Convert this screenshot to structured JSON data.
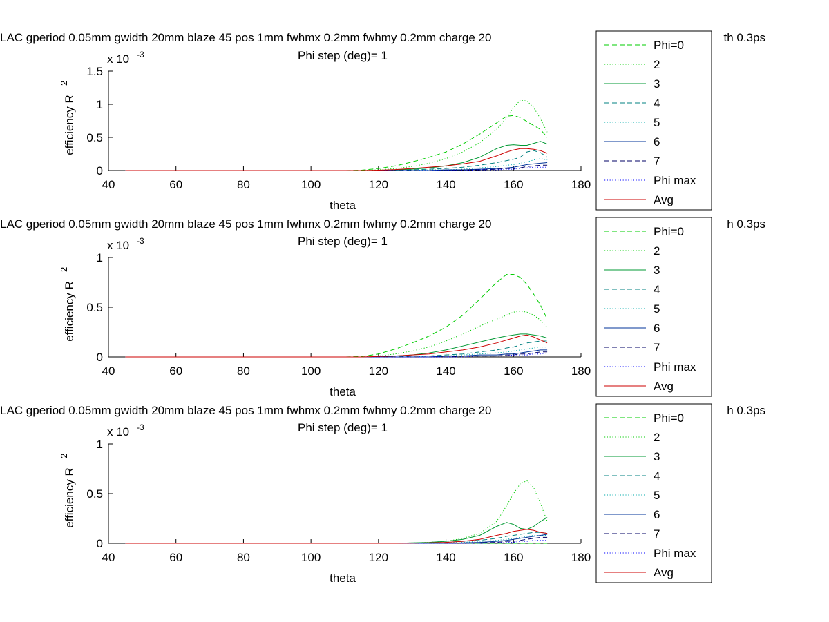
{
  "figure": {
    "background": "#ffffff",
    "axes_color": "#000000"
  },
  "chart_data": [
    {
      "type": "line",
      "title": "LAC gperiod 0.05mm gwidth 20mm blaze 45 pos 1mm fwhmx 0.2mm fwhmy 0.2mm charge 20",
      "title_tail": "th 0.3ps",
      "subtitle": "Phi step (deg)= 1",
      "xlabel": "theta",
      "ylabel": "efficiency R",
      "ylabel_sup": "2",
      "exponent_base": "x 10",
      "exponent_power": "-3",
      "xlim": [
        40,
        180
      ],
      "ylim": [
        0,
        1.5
      ],
      "xticks": [
        "40",
        "60",
        "80",
        "100",
        "120",
        "140",
        "160",
        "180"
      ],
      "yticks": [
        "0",
        "0.5",
        "1",
        "1.5"
      ],
      "ytick_values": [
        0,
        0.5,
        1,
        1.5
      ],
      "legend_position": "right",
      "x": [
        45,
        110,
        115,
        120,
        125,
        130,
        135,
        140,
        145,
        150,
        155,
        158,
        160,
        162,
        164,
        166,
        168,
        170
      ],
      "series": [
        {
          "name": "Phi=0",
          "color": "#00cc00",
          "style": "dashed",
          "values": [
            0,
            0,
            0.005,
            0.03,
            0.07,
            0.13,
            0.2,
            0.28,
            0.4,
            0.55,
            0.72,
            0.82,
            0.83,
            0.8,
            0.74,
            0.68,
            0.62,
            0.5
          ]
        },
        {
          "name": "2",
          "color": "#00cc00",
          "style": "dotted",
          "values": [
            0,
            0,
            0,
            0.01,
            0.03,
            0.06,
            0.11,
            0.18,
            0.28,
            0.42,
            0.62,
            0.8,
            0.95,
            1.06,
            1.05,
            0.95,
            0.78,
            0.58
          ]
        },
        {
          "name": "3",
          "color": "#009933",
          "style": "solid",
          "values": [
            0,
            0,
            0,
            0,
            0.01,
            0.02,
            0.04,
            0.07,
            0.12,
            0.2,
            0.33,
            0.38,
            0.39,
            0.38,
            0.38,
            0.41,
            0.44,
            0.4
          ]
        },
        {
          "name": "4",
          "color": "#008080",
          "style": "dashed",
          "values": [
            0,
            0,
            0,
            0,
            0,
            0.01,
            0.02,
            0.03,
            0.05,
            0.08,
            0.12,
            0.15,
            0.17,
            0.2,
            0.28,
            0.3,
            0.27,
            0.2
          ]
        },
        {
          "name": "5",
          "color": "#00aaaa",
          "style": "dotted",
          "values": [
            0,
            0,
            0,
            0,
            0,
            0,
            0.01,
            0.01,
            0.02,
            0.04,
            0.06,
            0.08,
            0.09,
            0.11,
            0.13,
            0.16,
            0.18,
            0.16
          ]
        },
        {
          "name": "6",
          "color": "#003399",
          "style": "solid",
          "values": [
            0,
            0,
            0,
            0,
            0,
            0,
            0,
            0.01,
            0.01,
            0.02,
            0.03,
            0.04,
            0.05,
            0.07,
            0.09,
            0.1,
            0.11,
            0.12
          ]
        },
        {
          "name": "7",
          "color": "#000066",
          "style": "dashed",
          "values": [
            0,
            0,
            0,
            0,
            0,
            0,
            0,
            0,
            0.01,
            0.01,
            0.02,
            0.03,
            0.03,
            0.04,
            0.06,
            0.07,
            0.08,
            0.08
          ]
        },
        {
          "name": "Phi max",
          "color": "#0000ff",
          "style": "dotted",
          "values": [
            0,
            0,
            0,
            0,
            0,
            0,
            0,
            0,
            0,
            0.01,
            0.01,
            0.02,
            0.02,
            0.03,
            0.04,
            0.05,
            0.05,
            0.05
          ]
        },
        {
          "name": "Avg",
          "color": "#cc0000",
          "style": "solid",
          "values": [
            0,
            0,
            0,
            0.005,
            0.015,
            0.03,
            0.05,
            0.07,
            0.1,
            0.14,
            0.22,
            0.28,
            0.31,
            0.33,
            0.33,
            0.32,
            0.3,
            0.26
          ]
        }
      ]
    },
    {
      "type": "line",
      "title": "LAC gperiod 0.05mm gwidth 20mm blaze 45 pos 1mm fwhmx 0.2mm fwhmy 0.2mm charge 20",
      "title_tail": "h 0.3ps",
      "subtitle": "Phi step (deg)= 1",
      "xlabel": "theta",
      "ylabel": "efficiency R",
      "ylabel_sup": "2",
      "exponent_base": "x 10",
      "exponent_power": "-3",
      "xlim": [
        40,
        180
      ],
      "ylim": [
        0,
        1
      ],
      "xticks": [
        "40",
        "60",
        "80",
        "100",
        "120",
        "140",
        "160",
        "180"
      ],
      "yticks": [
        "0",
        "0.5",
        "1"
      ],
      "ytick_values": [
        0,
        0.5,
        1
      ],
      "legend_position": "right",
      "x": [
        45,
        110,
        115,
        120,
        125,
        130,
        135,
        140,
        145,
        150,
        155,
        158,
        160,
        162,
        164,
        166,
        168,
        170
      ],
      "series": [
        {
          "name": "Phi=0",
          "color": "#00cc00",
          "style": "dashed",
          "values": [
            0,
            0,
            0.005,
            0.03,
            0.08,
            0.14,
            0.21,
            0.3,
            0.42,
            0.58,
            0.75,
            0.83,
            0.83,
            0.8,
            0.73,
            0.63,
            0.52,
            0.38
          ]
        },
        {
          "name": "2",
          "color": "#00cc00",
          "style": "dotted",
          "values": [
            0,
            0,
            0,
            0.01,
            0.03,
            0.06,
            0.1,
            0.16,
            0.23,
            0.31,
            0.38,
            0.42,
            0.45,
            0.46,
            0.45,
            0.42,
            0.37,
            0.3
          ]
        },
        {
          "name": "3",
          "color": "#009933",
          "style": "solid",
          "values": [
            0,
            0,
            0,
            0,
            0.01,
            0.02,
            0.04,
            0.07,
            0.11,
            0.15,
            0.19,
            0.21,
            0.22,
            0.23,
            0.23,
            0.22,
            0.21,
            0.19
          ]
        },
        {
          "name": "4",
          "color": "#008080",
          "style": "dashed",
          "values": [
            0,
            0,
            0,
            0,
            0,
            0.01,
            0.01,
            0.02,
            0.03,
            0.05,
            0.07,
            0.09,
            0.1,
            0.12,
            0.14,
            0.15,
            0.16,
            0.16
          ]
        },
        {
          "name": "5",
          "color": "#00aaaa",
          "style": "dotted",
          "values": [
            0,
            0,
            0,
            0,
            0,
            0,
            0.01,
            0.01,
            0.02,
            0.03,
            0.04,
            0.05,
            0.06,
            0.07,
            0.08,
            0.09,
            0.1,
            0.1
          ]
        },
        {
          "name": "6",
          "color": "#003399",
          "style": "solid",
          "values": [
            0,
            0,
            0,
            0,
            0,
            0,
            0,
            0.01,
            0.01,
            0.02,
            0.02,
            0.03,
            0.03,
            0.04,
            0.05,
            0.06,
            0.07,
            0.07
          ]
        },
        {
          "name": "7",
          "color": "#000066",
          "style": "dashed",
          "values": [
            0,
            0,
            0,
            0,
            0,
            0,
            0,
            0,
            0.01,
            0.01,
            0.01,
            0.02,
            0.02,
            0.03,
            0.03,
            0.04,
            0.05,
            0.05
          ]
        },
        {
          "name": "Phi max",
          "color": "#0000ff",
          "style": "dotted",
          "values": [
            0,
            0,
            0,
            0,
            0,
            0,
            0,
            0,
            0,
            0.01,
            0.01,
            0.01,
            0.02,
            0.02,
            0.02,
            0.03,
            0.03,
            0.04
          ]
        },
        {
          "name": "Avg",
          "color": "#cc0000",
          "style": "solid",
          "values": [
            0,
            0,
            0,
            0.005,
            0.01,
            0.02,
            0.03,
            0.05,
            0.07,
            0.1,
            0.14,
            0.17,
            0.19,
            0.21,
            0.22,
            0.2,
            0.17,
            0.14
          ]
        }
      ]
    },
    {
      "type": "line",
      "title": "LAC gperiod 0.05mm gwidth 20mm blaze 45 pos 1mm fwhmx 0.2mm fwhmy 0.2mm charge 20",
      "title_tail": "h 0.3ps",
      "subtitle": "Phi step (deg)= 1",
      "xlabel": "theta",
      "ylabel": "efficiency R",
      "ylabel_sup": "2",
      "exponent_base": "x 10",
      "exponent_power": "-3",
      "xlim": [
        40,
        180
      ],
      "ylim": [
        0,
        1
      ],
      "xticks": [
        "40",
        "60",
        "80",
        "100",
        "120",
        "140",
        "160",
        "180"
      ],
      "yticks": [
        "0",
        "0.5",
        "1"
      ],
      "ytick_values": [
        0,
        0.5,
        1
      ],
      "legend_position": "right",
      "x": [
        45,
        110,
        115,
        120,
        125,
        130,
        135,
        140,
        145,
        150,
        155,
        158,
        160,
        162,
        164,
        166,
        168,
        170
      ],
      "series": [
        {
          "name": "Phi=0",
          "color": "#00cc00",
          "style": "dashed",
          "values": [
            0,
            0,
            0,
            0,
            0,
            0,
            0,
            0,
            0,
            0,
            0,
            0,
            0,
            0,
            0,
            0,
            0,
            0
          ]
        },
        {
          "name": "2",
          "color": "#00cc00",
          "style": "dotted",
          "values": [
            0,
            0,
            0,
            0,
            0,
            0.005,
            0.01,
            0.02,
            0.05,
            0.1,
            0.22,
            0.38,
            0.5,
            0.6,
            0.63,
            0.56,
            0.4,
            0.22
          ]
        },
        {
          "name": "3",
          "color": "#009933",
          "style": "solid",
          "values": [
            0,
            0,
            0,
            0,
            0,
            0.005,
            0.01,
            0.02,
            0.04,
            0.08,
            0.17,
            0.21,
            0.19,
            0.15,
            0.14,
            0.17,
            0.22,
            0.26
          ]
        },
        {
          "name": "4",
          "color": "#008080",
          "style": "dashed",
          "values": [
            0,
            0,
            0,
            0,
            0,
            0,
            0.005,
            0.01,
            0.02,
            0.03,
            0.05,
            0.07,
            0.08,
            0.09,
            0.1,
            0.11,
            0.11,
            0.1
          ]
        },
        {
          "name": "5",
          "color": "#00aaaa",
          "style": "dotted",
          "values": [
            0,
            0,
            0,
            0,
            0,
            0,
            0,
            0.005,
            0.01,
            0.02,
            0.03,
            0.04,
            0.05,
            0.06,
            0.07,
            0.08,
            0.08,
            0.08
          ]
        },
        {
          "name": "6",
          "color": "#003399",
          "style": "solid",
          "values": [
            0,
            0,
            0,
            0,
            0,
            0,
            0,
            0,
            0.005,
            0.01,
            0.02,
            0.03,
            0.04,
            0.05,
            0.06,
            0.07,
            0.08,
            0.09
          ]
        },
        {
          "name": "7",
          "color": "#000066",
          "style": "dashed",
          "values": [
            0,
            0,
            0,
            0,
            0,
            0,
            0,
            0,
            0,
            0.005,
            0.01,
            0.02,
            0.02,
            0.03,
            0.04,
            0.05,
            0.06,
            0.06
          ]
        },
        {
          "name": "Phi max",
          "color": "#0000ff",
          "style": "dotted",
          "values": [
            0,
            0,
            0,
            0,
            0,
            0,
            0,
            0,
            0,
            0,
            0.005,
            0.01,
            0.01,
            0.02,
            0.02,
            0.03,
            0.03,
            0.03
          ]
        },
        {
          "name": "Avg",
          "color": "#cc0000",
          "style": "solid",
          "values": [
            0,
            0,
            0,
            0,
            0,
            0.002,
            0.005,
            0.01,
            0.02,
            0.04,
            0.08,
            0.1,
            0.12,
            0.13,
            0.14,
            0.13,
            0.11,
            0.1
          ]
        }
      ]
    }
  ]
}
